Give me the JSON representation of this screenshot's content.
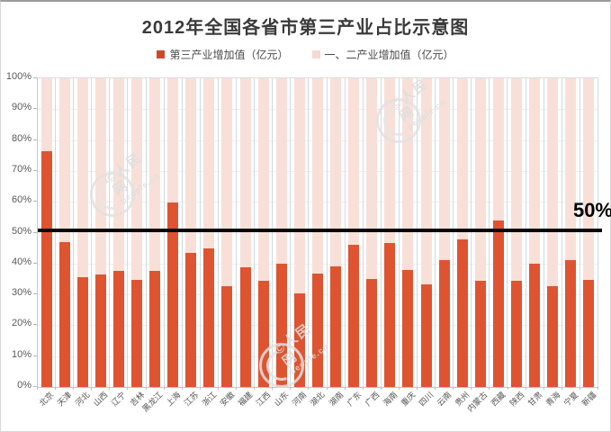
{
  "title": "2012年全国各省市第三产业占比示意图",
  "legend": {
    "items": [
      {
        "label": "第三产业增加值（亿元）",
        "color": "#cc4a2c"
      },
      {
        "label": "一、二产业增加值（亿元）",
        "color": "#f6d9d0"
      }
    ]
  },
  "annotation": {
    "label": "50%"
  },
  "watermark": {
    "cn": "人民网",
    "en": "people.cn"
  },
  "chart_data": {
    "type": "bar",
    "stacked": true,
    "percent_stacked": true,
    "title": "2012年全国各省市第三产业占比示意图",
    "categories": [
      "北京",
      "天津",
      "河北",
      "山西",
      "辽宁",
      "吉林",
      "黑龙江",
      "上海",
      "江苏",
      "浙江",
      "安徽",
      "福建",
      "江西",
      "山东",
      "河南",
      "湖北",
      "湖南",
      "广东",
      "广西",
      "海南",
      "重庆",
      "四川",
      "云南",
      "贵州",
      "内蒙古",
      "西藏",
      "陕西",
      "甘肃",
      "青海",
      "宁夏",
      "新疆"
    ],
    "series": [
      {
        "name": "第三产业增加值（亿元）",
        "color": "#de5431",
        "values": [
          76.4,
          47.0,
          35.5,
          36.3,
          37.5,
          34.8,
          37.5,
          59.8,
          43.4,
          45.0,
          32.6,
          38.7,
          34.4,
          40.0,
          30.4,
          36.7,
          39.0,
          46.1,
          35.0,
          46.6,
          38.0,
          33.3,
          41.0,
          47.9,
          34.5,
          53.8,
          34.5,
          40.0,
          32.6,
          41.2,
          34.8
        ]
      },
      {
        "name": "一、二产业增加值（亿元）",
        "color": "#f8e0d8",
        "values": [
          23.6,
          53.0,
          64.5,
          63.7,
          62.5,
          65.2,
          62.5,
          40.2,
          56.6,
          55.0,
          67.4,
          61.3,
          65.6,
          60.0,
          69.6,
          63.3,
          61.0,
          53.9,
          65.0,
          53.4,
          62.0,
          66.7,
          59.0,
          52.1,
          65.5,
          46.2,
          65.5,
          60.0,
          67.4,
          58.8,
          65.2
        ]
      }
    ],
    "y_axis": {
      "min": 0,
      "max": 100,
      "step": 10,
      "ticks": [
        "0%",
        "10%",
        "20%",
        "30%",
        "40%",
        "50%",
        "60%",
        "70%",
        "80%",
        "90%",
        "100%"
      ]
    },
    "reference_line": {
      "value": 50,
      "label": "50%",
      "color": "#000000"
    },
    "grid": true,
    "legend_position": "top",
    "x_label_rotation": 45
  }
}
